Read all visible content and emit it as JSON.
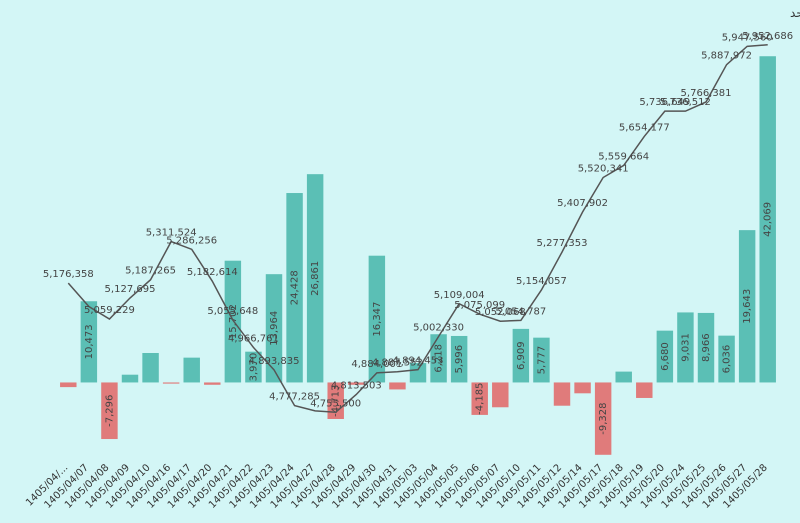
{
  "chart_data": {
    "type": "bar",
    "title": "نمودار خالص ورود پول حقیقی(سبز/قرمز) - شاخص کل(مشکی) واحد اعداد بترتیب میلیارد ریال و واحد",
    "categories": [
      "1405/04/...",
      "1405/04/07",
      "1405/04/08",
      "1405/04/09",
      "1405/04/10",
      "1405/04/16",
      "1405/04/17",
      "1405/04/20",
      "1405/04/21",
      "1405/04/22",
      "1405/04/23",
      "1405/04/24",
      "1405/04/27",
      "1405/04/28",
      "1405/04/29",
      "1405/04/30",
      "1405/04/31",
      "1405/05/03",
      "1405/05/04",
      "1405/05/05",
      "1405/05/06",
      "1405/05/07",
      "1405/05/10",
      "1405/05/11",
      "1405/05/12",
      "1405/05/14",
      "1405/05/17",
      "1405/05/18",
      "1405/05/19",
      "1405/05/20",
      "1405/05/24",
      "1405/05/25",
      "1405/05/26",
      "1405/05/27",
      "1405/05/28"
    ],
    "series": [
      {
        "type": "bar",
        "color": "#5bbfb5",
        "negative_color": "#e07b7b",
        "values": [
          -600,
          10473,
          -7296,
          1000,
          3800,
          -150,
          3200,
          -300,
          15702,
          3970,
          13964,
          24428,
          26861,
          -4713,
          -300,
          16347,
          -900,
          2500,
          6218,
          5996,
          -4185,
          -3200,
          6909,
          5777,
          -3000,
          -1400,
          -9328,
          1400,
          -2000,
          6680,
          9031,
          8966,
          6036,
          19643,
          42069
        ],
        "value_labels": [
          null,
          "10,473",
          "-7,296",
          null,
          null,
          null,
          null,
          null,
          "15,702",
          "3,970",
          "13,964",
          "24,428",
          "26,861",
          "-4,713",
          null,
          "16,347",
          null,
          null,
          "6,218",
          "5,996",
          "-4,185",
          null,
          "6,909",
          "5,777",
          null,
          null,
          "-9,328",
          null,
          null,
          "6,680",
          "9,031",
          "8,966",
          "6,036",
          "19,643",
          "42,069"
        ]
      },
      {
        "type": "line",
        "axis": "y2",
        "color": "#555555",
        "values": [
          5176358,
          5100000,
          5059229,
          5127695,
          5187265,
          5311524,
          5286256,
          5182614,
          5055648,
          4966761,
          4893835,
          4777285,
          4760000,
          4755500,
          4813503,
          4884001,
          4887552,
          4894453,
          5002330,
          5109004,
          5075099,
          5052068,
          5054787,
          5154057,
          5277353,
          5407902,
          5520341,
          5559664,
          5654177,
          5736649,
          5736512,
          5766381,
          5887972,
          5947560,
          5952686
        ],
        "value_labels": [
          "5,176,358",
          null,
          "5,059,229",
          "5,127,695",
          "5,187,265",
          "5,311,524",
          "5,286,256",
          "5,182,614",
          "5,055,648",
          "4,966,761",
          "4,893,835",
          "4,777,285",
          null,
          "4,755,500",
          "4,813,503",
          "4,884,001",
          "4,887,552",
          "4,894,453",
          "5,002,330",
          "5,109,004",
          "5,075,099",
          "5,052,068",
          "5,054,787",
          "5,154,057",
          "5,277,353",
          "5,407,902",
          "5,520,341",
          "5,559,664",
          "5,654,177",
          "5,736,649",
          "5,736,512",
          "5,766,381",
          "5,887,972",
          "5,947,560",
          "5,952,686"
        ]
      }
    ],
    "ylim": [
      -10000,
      47000
    ],
    "y2lim": [
      4600000,
      6040000
    ]
  }
}
